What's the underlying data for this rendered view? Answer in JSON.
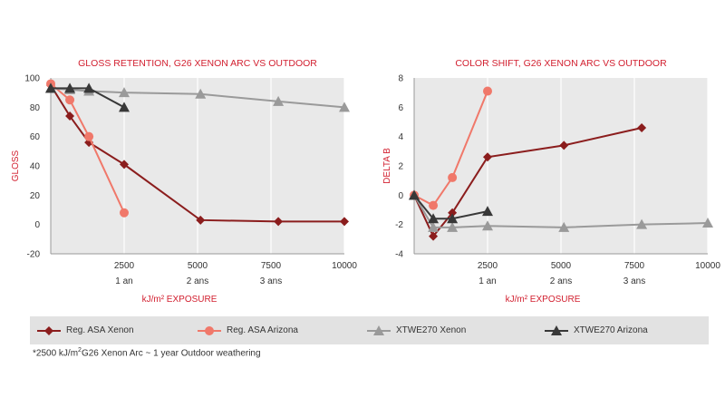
{
  "colors": {
    "reg_asa_xenon": "#8b1d1d",
    "reg_asa_arizona": "#f0786a",
    "xtwe270_xenon": "#9a9a9a",
    "xtwe270_arizona": "#383838",
    "title": "#d21f2f",
    "axis_title": "#d21f2f",
    "plot_bg": "#e9e9e9"
  },
  "legend": [
    {
      "name": "Reg. ASA Xenon",
      "marker": "diamond",
      "color": "#8b1d1d"
    },
    {
      "name": "Reg. ASA Arizona",
      "marker": "circle",
      "color": "#f0786a"
    },
    {
      "name": "XTWE270 Xenon",
      "marker": "triangle",
      "color": "#9a9a9a"
    },
    {
      "name": "XTWE270 Arizona",
      "marker": "triangle",
      "color": "#383838"
    }
  ],
  "footnote": {
    "pre": "*2500 kJ/m",
    "sup": "2",
    "post": "G26 Xenon Arc ~ 1 year Outdoor weathering"
  },
  "chart_data": [
    {
      "type": "line",
      "title": "GLOSS RETENTION, G26 XENON ARC VS OUTDOOR",
      "ylabel": "GLOSS",
      "xlabel": "kJ/m² EXPOSURE",
      "xlim": [
        0,
        10000
      ],
      "ylim": [
        -20,
        100
      ],
      "x_ticks": [
        2500,
        5000,
        7500,
        10000
      ],
      "y_ticks": [
        -20,
        0,
        20,
        40,
        60,
        80,
        100
      ],
      "x_secondary_labels": [
        {
          "x": 2500,
          "label": "1 an"
        },
        {
          "x": 5000,
          "label": "2 ans"
        },
        {
          "x": 7500,
          "label": "3 ans"
        }
      ],
      "grid": true,
      "series": [
        {
          "name": "Reg. ASA Xenon",
          "marker": "diamond",
          "x": [
            0,
            650,
            1300,
            2500,
            5100,
            7750,
            10000
          ],
          "y": [
            95,
            74,
            56,
            41,
            3,
            2,
            2
          ]
        },
        {
          "name": "Reg. ASA Arizona",
          "marker": "circle",
          "x": [
            0,
            650,
            1300,
            2500
          ],
          "y": [
            96,
            85,
            60,
            8
          ]
        },
        {
          "name": "XTWE270 Xenon",
          "marker": "triangle",
          "x": [
            0,
            650,
            1300,
            2500,
            5100,
            7750,
            10000
          ],
          "y": [
            93,
            92,
            91,
            90,
            89,
            84,
            80
          ]
        },
        {
          "name": "XTWE270 Arizona",
          "marker": "triangle",
          "x": [
            0,
            650,
            1300,
            2500
          ],
          "y": [
            93,
            93,
            93,
            80
          ]
        }
      ]
    },
    {
      "type": "line",
      "title": "COLOR SHIFT, G26 XENON ARC VS OUTDOOR",
      "ylabel": "DELTA B",
      "xlabel": "kJ/m² EXPOSURE",
      "xlim": [
        0,
        10000
      ],
      "ylim": [
        -4,
        8
      ],
      "x_ticks": [
        2500,
        5000,
        7500,
        10000
      ],
      "y_ticks": [
        -4,
        -2,
        0,
        2,
        4,
        6,
        8
      ],
      "x_secondary_labels": [
        {
          "x": 2500,
          "label": "1 an"
        },
        {
          "x": 5000,
          "label": "2 ans"
        },
        {
          "x": 7500,
          "label": "3 ans"
        }
      ],
      "grid": true,
      "series": [
        {
          "name": "Reg. ASA Xenon",
          "marker": "diamond",
          "x": [
            0,
            650,
            1300,
            2500,
            5100,
            7750
          ],
          "y": [
            0,
            -2.8,
            -1.2,
            2.6,
            3.4,
            4.6
          ]
        },
        {
          "name": "Reg. ASA Arizona",
          "marker": "circle",
          "x": [
            0,
            650,
            1300,
            2500
          ],
          "y": [
            0,
            -0.7,
            1.2,
            7.1
          ]
        },
        {
          "name": "XTWE270 Xenon",
          "marker": "triangle",
          "x": [
            0,
            650,
            1300,
            2500,
            5100,
            7750,
            10000
          ],
          "y": [
            0,
            -2.2,
            -2.2,
            -2.1,
            -2.2,
            -2.0,
            -1.9
          ]
        },
        {
          "name": "XTWE270 Arizona",
          "marker": "triangle",
          "x": [
            0,
            650,
            1300,
            2500
          ],
          "y": [
            0,
            -1.6,
            -1.6,
            -1.1
          ]
        }
      ]
    }
  ]
}
